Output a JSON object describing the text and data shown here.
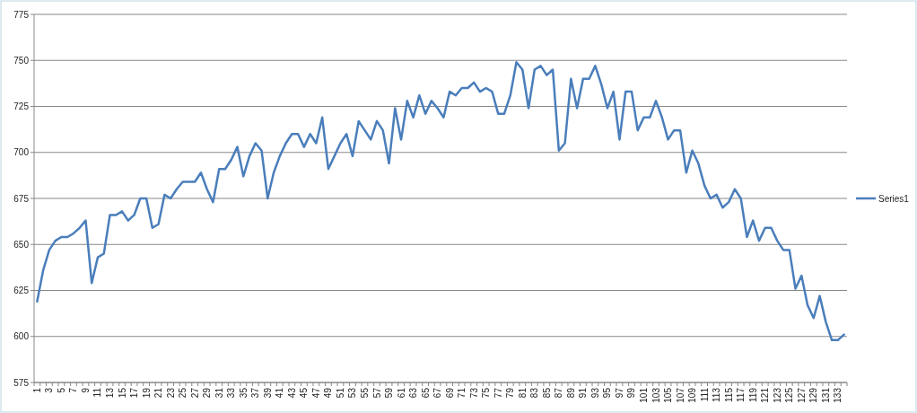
{
  "chart_data": {
    "type": "line",
    "categories": [
      "1",
      null,
      "3",
      null,
      "5",
      null,
      "7",
      null,
      "9",
      null,
      "11",
      null,
      "13",
      null,
      "15",
      null,
      "17",
      null,
      "19",
      null,
      "21",
      null,
      "23",
      null,
      "25",
      null,
      "27",
      null,
      "29",
      null,
      "31",
      null,
      "33",
      null,
      "35",
      null,
      "37",
      null,
      "39",
      null,
      "41",
      null,
      "43",
      null,
      "45",
      null,
      "47",
      null,
      "49",
      null,
      "51",
      null,
      "53",
      null,
      "55",
      null,
      "57",
      null,
      "59",
      null,
      "61",
      null,
      "63",
      null,
      "65",
      null,
      "67",
      null,
      "69",
      null,
      "71",
      null,
      "73",
      null,
      "75",
      null,
      "77",
      null,
      "79",
      null,
      "81",
      null,
      "83",
      null,
      "85",
      null,
      "87",
      null,
      "89",
      null,
      "91",
      null,
      "93",
      null,
      "95",
      null,
      "97",
      null,
      "99",
      null,
      "101",
      null,
      "103",
      null,
      "105",
      null,
      "107",
      null,
      "109",
      null,
      "111",
      null,
      "113",
      null,
      "115",
      null,
      "117",
      null,
      "119",
      null,
      "121",
      null,
      "123",
      null,
      "125",
      null,
      "127",
      null,
      "129",
      null,
      "131",
      null,
      "133",
      null
    ],
    "series": [
      {
        "name": "Series1",
        "color": "#4a7ebb",
        "values": [
          619,
          636,
          647,
          652,
          654,
          654,
          656,
          659,
          663,
          629,
          643,
          645,
          666,
          666,
          668,
          663,
          666,
          675,
          675,
          659,
          661,
          677,
          675,
          680,
          684,
          684,
          684,
          689,
          680,
          673,
          691,
          691,
          696,
          703,
          687,
          698,
          705,
          701,
          675,
          689,
          698,
          705,
          710,
          710,
          703,
          710,
          705,
          719,
          691,
          698,
          705,
          710,
          698,
          717,
          712,
          707,
          717,
          712,
          694,
          724,
          707,
          728,
          719,
          731,
          721,
          728,
          724,
          719,
          733,
          731,
          735,
          735,
          738,
          733,
          735,
          733,
          721,
          721,
          731,
          749,
          745,
          724,
          745,
          747,
          742,
          745,
          701,
          705,
          740,
          724,
          740,
          740,
          747,
          737,
          724,
          733,
          707,
          733,
          733,
          712,
          719,
          719,
          728,
          719,
          707,
          712,
          712,
          689,
          701,
          694,
          682,
          675,
          677,
          670,
          673,
          680,
          675,
          654,
          663,
          652,
          659,
          659,
          652,
          647,
          647,
          626,
          633,
          617,
          610,
          622,
          608,
          598,
          598,
          601
        ]
      }
    ],
    "ylim": [
      575,
      775
    ],
    "yticks": [
      575,
      600,
      625,
      650,
      675,
      700,
      725,
      750,
      775
    ],
    "grid": "y",
    "legend": "right",
    "marker": "none",
    "line_style": "solid"
  }
}
